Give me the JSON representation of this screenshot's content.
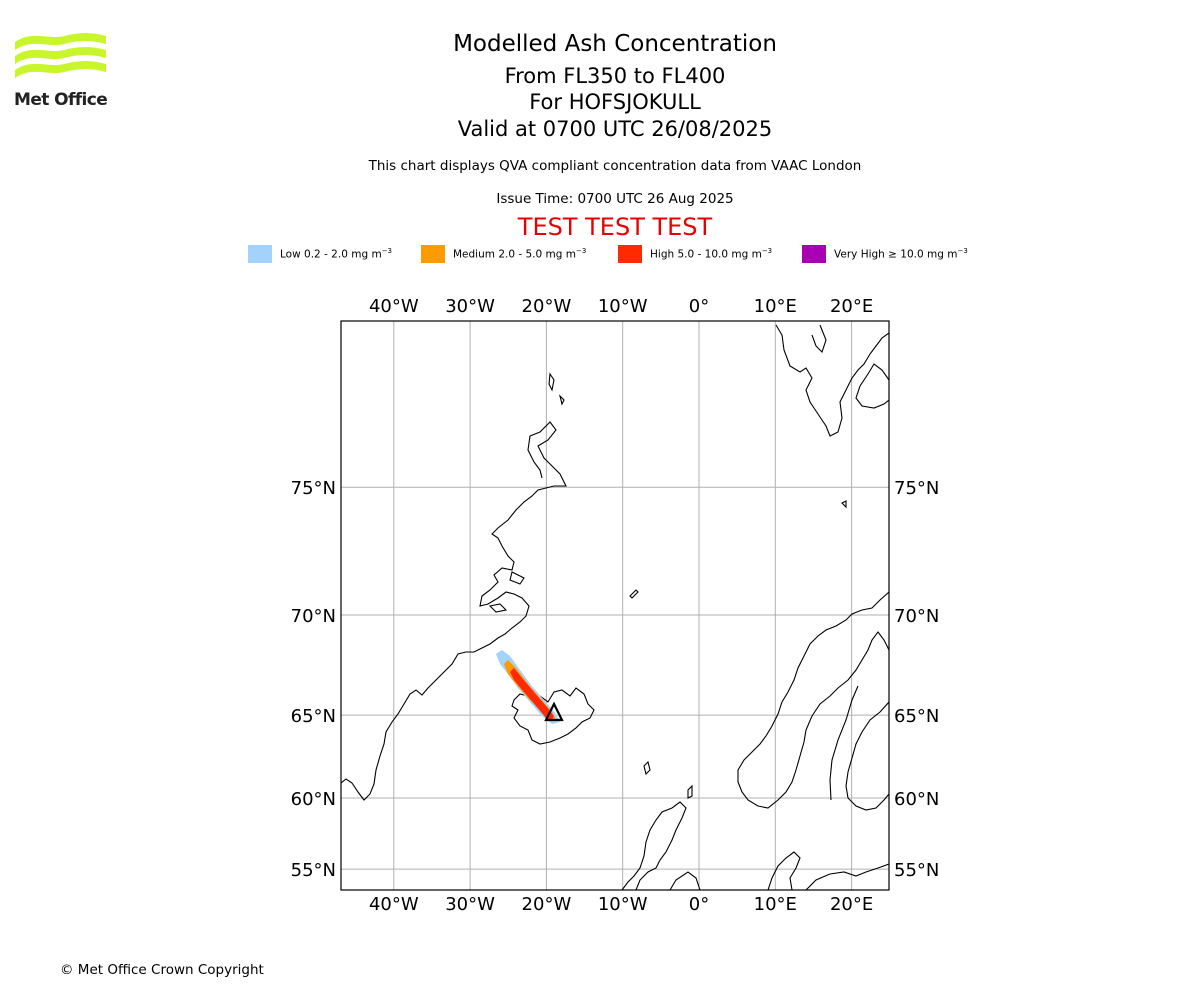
{
  "logo": {
    "text": "Met Office",
    "colors": {
      "waves": "#c8f52c",
      "text": "#222222"
    }
  },
  "header": {
    "title": "Modelled Ash Concentration",
    "levels": "From FL350 to FL400",
    "volcano": "For HOFSJOKULL",
    "valid": "Valid at 0700 UTC 26/08/2025",
    "note": "This chart displays QVA compliant concentration data from VAAC London",
    "issue": "Issue Time: 0700 UTC 26 Aug 2025",
    "test_banner": "TEST TEST TEST",
    "test_color": "#e80000"
  },
  "legend": [
    {
      "label": "Low 0.2 - 2.0 mg m",
      "unit_exp": "−3",
      "color": "#a3d3fa"
    },
    {
      "label": "Medium 2.0 - 5.0 mg m",
      "unit_exp": "−3",
      "color": "#ff9a00"
    },
    {
      "label": "High 5.0 - 10.0 mg m",
      "unit_exp": "−3",
      "color": "#ff2a00"
    },
    {
      "label": "Very High ≥ 10.0 mg m",
      "unit_exp": "−3",
      "color": "#aa00b5"
    }
  ],
  "map": {
    "lon_ticks": [
      "40°W",
      "30°W",
      "20°W",
      "10°W",
      "0°",
      "10°E",
      "20°E"
    ],
    "lat_ticks": [
      "75°N",
      "70°N",
      "65°N",
      "60°N",
      "55°N"
    ],
    "lon_values": [
      -40,
      -30,
      -20,
      -10,
      0,
      10,
      20
    ],
    "lat_values": [
      75,
      70,
      65,
      60,
      55
    ],
    "extent": {
      "lon_min": -47,
      "lon_max": 25,
      "lat_min": 53.5,
      "lat_max": 80
    },
    "volcano_marker": {
      "lat": 64.8,
      "lon": -18.9,
      "name": "HOFSJOKULL"
    },
    "gridline_color": "#b0b0b0",
    "coast_color": "#000000"
  },
  "footer": {
    "copyright": "© Met Office Crown Copyright"
  }
}
